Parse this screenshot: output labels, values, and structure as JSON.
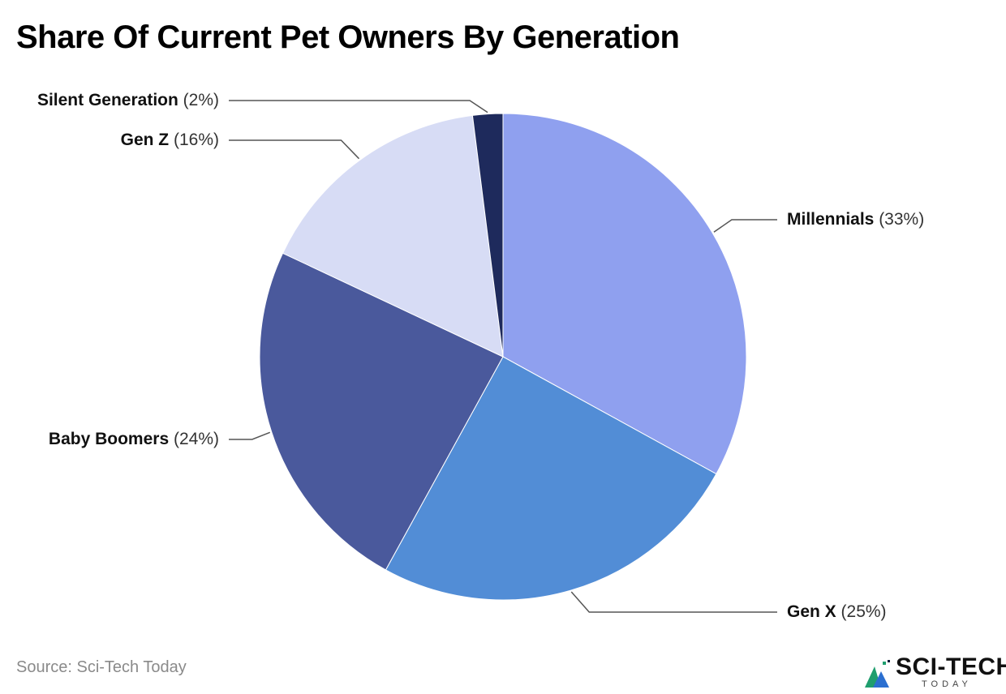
{
  "title": "Share Of Current Pet Owners By Generation",
  "source": "Source: Sci-Tech Today",
  "logo": {
    "wordmark": "SCI-TECH",
    "subtext": "TODAY",
    "colors": [
      "#1f9e6e",
      "#2b6fd0",
      "#0b1a3a"
    ]
  },
  "chart_data": {
    "type": "pie",
    "title": "Share Of Current Pet Owners By Generation",
    "start": "12 o'clock",
    "direction": "clockwise",
    "slices": [
      {
        "label": "Millennials",
        "value": 33,
        "value_text": "(33%)",
        "color": "#8fa0ef"
      },
      {
        "label": "Gen X",
        "value": 25,
        "value_text": "(25%)",
        "color": "#528dd6"
      },
      {
        "label": "Baby Boomers",
        "value": 24,
        "value_text": "(24%)",
        "color": "#4a599c"
      },
      {
        "label": "Gen Z",
        "value": 16,
        "value_text": "(16%)",
        "color": "#d7dcf5"
      },
      {
        "label": "Silent Generation",
        "value": 2,
        "value_text": "(2%)",
        "color": "#1e2a5c"
      }
    ]
  }
}
